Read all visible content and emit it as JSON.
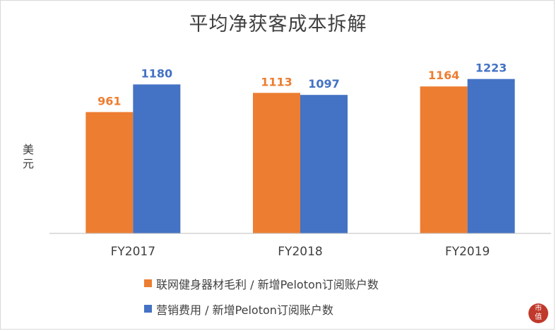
{
  "chart_data": {
    "type": "bar",
    "title": "平均净获客成本拆解",
    "ylabel": "美元",
    "xlabel": "",
    "categories": [
      "FY2017",
      "FY2018",
      "FY2019"
    ],
    "series": [
      {
        "name": "联网健身器材毛利 / 新增Peloton订阅账户数",
        "values": [
          961,
          1113,
          1164
        ],
        "color": "#ed7d31"
      },
      {
        "name": "营销费用 / 新增Peloton订阅账户数",
        "values": [
          1180,
          1097,
          1223
        ],
        "color": "#4472c4"
      }
    ],
    "ylim": [
      0,
      1600
    ],
    "grid": false,
    "legend_position": "bottom"
  },
  "colors": {
    "axis": "#bfbfbf",
    "text": "#404040",
    "data_label": "#404040"
  },
  "watermark_logo_text": "市值"
}
